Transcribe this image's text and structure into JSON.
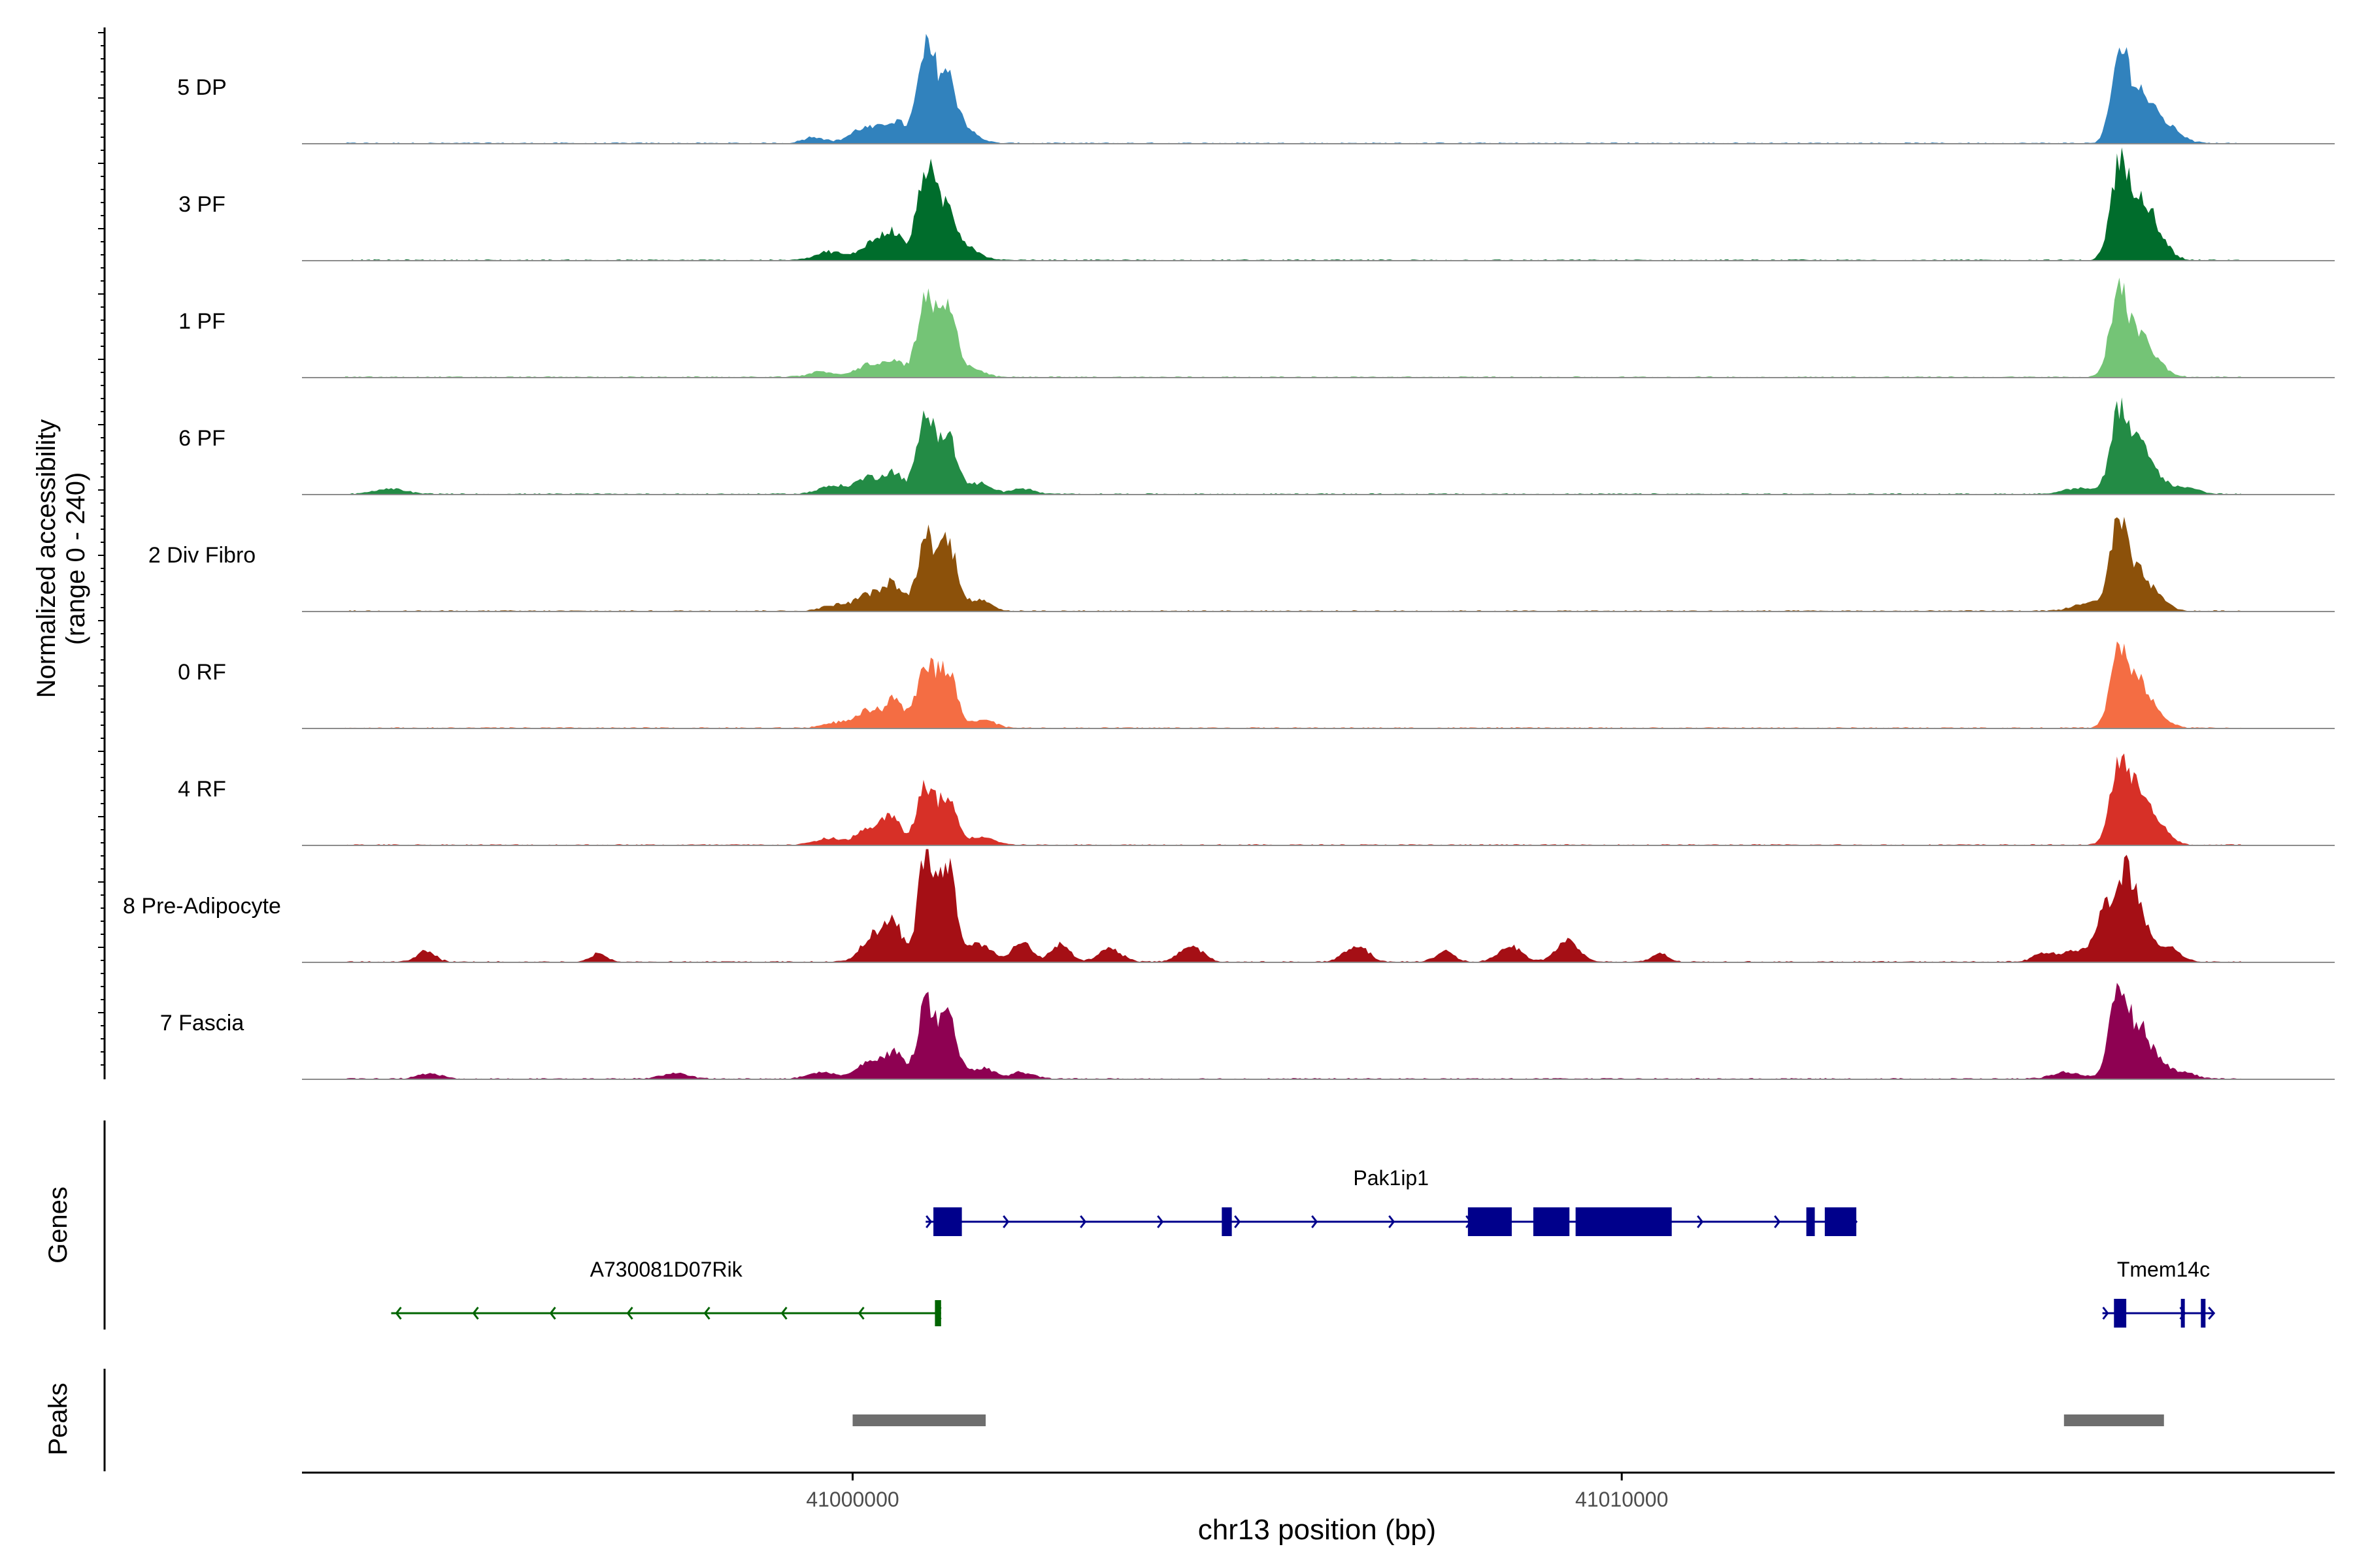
{
  "chart_data": {
    "type": "area",
    "title": "",
    "ylabel_line1": "Normalized accessibility",
    "ylabel_line2": "(range 0 - 240)",
    "xlabel": "chr13 position (bp)",
    "xlim": [
      40992840,
      41019270
    ],
    "ylim": [
      0,
      240
    ],
    "x_ticks": [
      {
        "value": 41000000,
        "label": "41000000"
      },
      {
        "value": 41010000,
        "label": "41010000"
      }
    ],
    "grid": false,
    "series": [
      {
        "name": "5 DP",
        "color": "#3182BD",
        "peaks": [
          [
            40999500,
            0.06,
            140
          ],
          [
            41000150,
            0.14,
            180
          ],
          [
            41000550,
            0.2,
            150
          ],
          [
            41000950,
            0.8,
            110
          ],
          [
            41001220,
            0.62,
            130
          ],
          [
            41001500,
            0.1,
            150
          ],
          [
            41016480,
            0.82,
            110
          ],
          [
            41016720,
            0.4,
            130
          ],
          [
            41016950,
            0.2,
            150
          ],
          [
            41017200,
            0.08,
            150
          ]
        ]
      },
      {
        "name": "3 PF",
        "color": "#006D2C",
        "peaks": [
          [
            40999700,
            0.08,
            180
          ],
          [
            41000250,
            0.16,
            150
          ],
          [
            41000530,
            0.25,
            130
          ],
          [
            41000950,
            0.85,
            110
          ],
          [
            41001220,
            0.48,
            120
          ],
          [
            41001500,
            0.12,
            150
          ],
          [
            41016460,
            0.85,
            110
          ],
          [
            41016720,
            0.55,
            130
          ],
          [
            41016950,
            0.25,
            150
          ]
        ]
      },
      {
        "name": "1 PF",
        "color": "#74C476",
        "peaks": [
          [
            40999600,
            0.05,
            180
          ],
          [
            41000200,
            0.12,
            150
          ],
          [
            41000550,
            0.15,
            130
          ],
          [
            41000950,
            0.68,
            110
          ],
          [
            41001230,
            0.62,
            120
          ],
          [
            41001550,
            0.08,
            150
          ],
          [
            41016460,
            0.8,
            110
          ],
          [
            41016720,
            0.35,
            130
          ],
          [
            41016950,
            0.12,
            150
          ]
        ]
      },
      {
        "name": "6 PF",
        "color": "#238B45",
        "peaks": [
          [
            40994000,
            0.05,
            200
          ],
          [
            40999750,
            0.08,
            180
          ],
          [
            41000200,
            0.15,
            150
          ],
          [
            41000530,
            0.2,
            130
          ],
          [
            41000950,
            0.72,
            110
          ],
          [
            41001230,
            0.55,
            120
          ],
          [
            41001650,
            0.1,
            150
          ],
          [
            41002200,
            0.05,
            150
          ],
          [
            41015950,
            0.06,
            200
          ],
          [
            41016460,
            0.75,
            110
          ],
          [
            41016720,
            0.4,
            130
          ],
          [
            41016950,
            0.15,
            150
          ],
          [
            41017350,
            0.06,
            150
          ]
        ]
      },
      {
        "name": "2 Div Fibro",
        "color": "#8C510A",
        "peaks": [
          [
            40999800,
            0.06,
            180
          ],
          [
            41000200,
            0.15,
            150
          ],
          [
            41000520,
            0.25,
            130
          ],
          [
            41000950,
            0.68,
            110
          ],
          [
            41001240,
            0.65,
            120
          ],
          [
            41001650,
            0.1,
            150
          ],
          [
            41016060,
            0.08,
            180
          ],
          [
            41016460,
            0.82,
            110
          ],
          [
            41016720,
            0.3,
            130
          ],
          [
            41016950,
            0.12,
            150
          ]
        ]
      },
      {
        "name": "0 RF",
        "color": "#F46D43",
        "peaks": [
          [
            40999800,
            0.05,
            180
          ],
          [
            41000200,
            0.15,
            150
          ],
          [
            41000540,
            0.25,
            130
          ],
          [
            41000950,
            0.6,
            110
          ],
          [
            41001230,
            0.55,
            120
          ],
          [
            41001700,
            0.08,
            150
          ],
          [
            41016460,
            0.7,
            110
          ],
          [
            41016720,
            0.38,
            130
          ],
          [
            41016950,
            0.12,
            150
          ]
        ]
      },
      {
        "name": "4 RF",
        "color": "#D73027",
        "peaks": [
          [
            40999700,
            0.06,
            180
          ],
          [
            41000200,
            0.14,
            150
          ],
          [
            41000500,
            0.25,
            130
          ],
          [
            41000950,
            0.55,
            110
          ],
          [
            41001240,
            0.42,
            120
          ],
          [
            41001700,
            0.08,
            150
          ],
          [
            41016460,
            0.75,
            110
          ],
          [
            41016720,
            0.45,
            130
          ],
          [
            41016950,
            0.2,
            150
          ]
        ]
      },
      {
        "name": "8 Pre-Adipocyte",
        "color": "#A50F15",
        "peaks": [
          [
            40994450,
            0.1,
            120
          ],
          [
            40996700,
            0.08,
            100
          ],
          [
            41000250,
            0.22,
            150
          ],
          [
            41000530,
            0.35,
            130
          ],
          [
            41000950,
            1.0,
            100
          ],
          [
            41001230,
            0.92,
            110
          ],
          [
            41001650,
            0.18,
            150
          ],
          [
            41002200,
            0.2,
            120
          ],
          [
            41002700,
            0.18,
            120
          ],
          [
            41003350,
            0.12,
            150
          ],
          [
            41004400,
            0.15,
            150
          ],
          [
            41006550,
            0.15,
            150
          ],
          [
            41007700,
            0.1,
            120
          ],
          [
            41008550,
            0.15,
            150
          ],
          [
            41009300,
            0.2,
            150
          ],
          [
            41010500,
            0.08,
            100
          ],
          [
            41015500,
            0.08,
            150
          ],
          [
            41015900,
            0.1,
            150
          ],
          [
            41016300,
            0.5,
            130
          ],
          [
            41016540,
            0.65,
            110
          ],
          [
            41016720,
            0.4,
            130
          ],
          [
            41017100,
            0.15,
            150
          ]
        ]
      },
      {
        "name": "7 Fascia",
        "color": "#8E0152",
        "peaks": [
          [
            40994500,
            0.05,
            150
          ],
          [
            40997700,
            0.05,
            180
          ],
          [
            40999600,
            0.06,
            180
          ],
          [
            41000200,
            0.15,
            150
          ],
          [
            41000530,
            0.25,
            130
          ],
          [
            41000950,
            0.68,
            110
          ],
          [
            41001240,
            0.55,
            120
          ],
          [
            41001700,
            0.1,
            150
          ],
          [
            41002200,
            0.06,
            150
          ],
          [
            41015800,
            0.06,
            200
          ],
          [
            41016460,
            0.85,
            110
          ],
          [
            41016720,
            0.42,
            130
          ],
          [
            41016950,
            0.15,
            150
          ],
          [
            41017300,
            0.06,
            150
          ]
        ]
      }
    ],
    "genes_track": {
      "label": "Genes",
      "genes": [
        {
          "name": "Pak1ip1",
          "strand": "+",
          "start": 41000950,
          "end": 41013050,
          "color": "#00008B",
          "exons": [
            [
              41001050,
              41001420
            ],
            [
              41004800,
              41004930
            ],
            [
              41008000,
              41008570
            ],
            [
              41008850,
              41009320
            ],
            [
              41009400,
              41010650
            ],
            [
              41012400,
              41012510
            ],
            [
              41012640,
              41013050
            ]
          ]
        },
        {
          "name": "A730081D07Rik",
          "strand": "-",
          "start": 40994000,
          "end": 41001150,
          "color": "#006400",
          "exons": [
            [
              41001070,
              41001150
            ]
          ]
        },
        {
          "name": "Tmem14c",
          "strand": "+",
          "start": 41016250,
          "end": 41017700,
          "color": "#00008B",
          "exons": [
            [
              41016400,
              41016560
            ],
            [
              41017270,
              41017310
            ],
            [
              41017530,
              41017590
            ]
          ]
        }
      ]
    },
    "peaks_track": {
      "label": "Peaks",
      "peaks": [
        [
          41000000,
          41001730
        ],
        [
          41015750,
          41017050
        ]
      ]
    }
  }
}
